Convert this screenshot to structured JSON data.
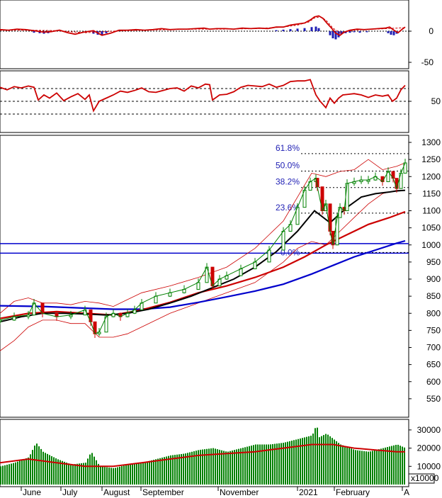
{
  "chart_data": [
    {
      "type": "line",
      "panel": "MACD",
      "y_ticks": [
        "0",
        "-50"
      ],
      "ylim": [
        -60,
        45
      ],
      "series": [
        {
          "role": "macd-line",
          "color": "#cc0000",
          "x": [
            0,
            12,
            24,
            36,
            48,
            62,
            72,
            84,
            96,
            106,
            118,
            132,
            144,
            156,
            168,
            180,
            192,
            204,
            216,
            228,
            240,
            252,
            264,
            276,
            288,
            296,
            306,
            318,
            330,
            342,
            354,
            366,
            378,
            390,
            400,
            410,
            420,
            430,
            438,
            444,
            450,
            456,
            462,
            468,
            474,
            480,
            486,
            494,
            504,
            514,
            524,
            534,
            544,
            550,
            556,
            562,
            568,
            572
          ],
          "values": [
            3,
            2,
            4,
            3,
            1,
            -2,
            -1,
            2,
            -3,
            -6,
            -2,
            1,
            -8,
            -4,
            2,
            2,
            3,
            2,
            3,
            5,
            3,
            4,
            4,
            5,
            6,
            4,
            5,
            5,
            4,
            6,
            5,
            6,
            5,
            8,
            8,
            12,
            14,
            16,
            22,
            28,
            30,
            25,
            15,
            6,
            -4,
            -8,
            -2,
            2,
            4,
            3,
            4,
            5,
            6,
            8,
            2,
            -3,
            4,
            8
          ]
        },
        {
          "role": "signal-line",
          "color": "#cc0000",
          "x": [
            0,
            40,
            80,
            120,
            160,
            200,
            240,
            280,
            320,
            360,
            400,
            420,
            436,
            444,
            452,
            460,
            470,
            480,
            500,
            530,
            560,
            572
          ],
          "values": [
            2,
            2,
            1,
            -3,
            0,
            2,
            3,
            4,
            4,
            5,
            8,
            12,
            18,
            26,
            28,
            22,
            6,
            -3,
            2,
            4,
            6,
            7
          ]
        },
        {
          "role": "histogram",
          "color": "#1f1fb4",
          "x": [
            48,
            56,
            62,
            68,
            72,
            132,
            138,
            144,
            150,
            390,
            400,
            410,
            420,
            430,
            440,
            446,
            450,
            466,
            470,
            474,
            478,
            482,
            488,
            494,
            500,
            508,
            518,
            548,
            552,
            556,
            560
          ],
          "values": [
            -3,
            -4,
            -5,
            -4,
            -2,
            -5,
            -7,
            -8,
            -4,
            2,
            3,
            4,
            5,
            6,
            8,
            9,
            6,
            -8,
            -14,
            -16,
            -12,
            -6,
            -4,
            -3,
            -2,
            -3,
            -2,
            -4,
            -7,
            -8,
            -5
          ]
        }
      ]
    },
    {
      "type": "line",
      "panel": "RSI",
      "y_ticks": [
        "50"
      ],
      "reference_lines": [
        70,
        50,
        30
      ],
      "series": [
        {
          "role": "rsi",
          "color": "#cc0000",
          "x": [
            0,
            10,
            20,
            30,
            40,
            48,
            54,
            62,
            70,
            80,
            90,
            100,
            110,
            120,
            126,
            132,
            140,
            150,
            160,
            170,
            180,
            190,
            200,
            210,
            220,
            230,
            240,
            250,
            260,
            270,
            280,
            290,
            296,
            300,
            310,
            320,
            330,
            340,
            350,
            360,
            370,
            380,
            390,
            400,
            410,
            420,
            430,
            438,
            446,
            452,
            460,
            466,
            472,
            478,
            484,
            492,
            500,
            510,
            520,
            530,
            540,
            548,
            554,
            560,
            566,
            572
          ],
          "values": [
            72,
            68,
            73,
            71,
            74,
            72,
            52,
            60,
            55,
            63,
            51,
            57,
            62,
            53,
            60,
            35,
            50,
            55,
            60,
            66,
            64,
            67,
            71,
            65,
            64,
            67,
            70,
            71,
            66,
            74,
            71,
            77,
            76,
            52,
            60,
            61,
            65,
            72,
            75,
            74,
            73,
            77,
            72,
            75,
            81,
            82,
            82,
            84,
            60,
            50,
            40,
            55,
            47,
            55,
            60,
            61,
            62,
            60,
            56,
            60,
            58,
            60,
            50,
            55,
            68,
            75
          ]
        }
      ]
    },
    {
      "type": "line",
      "panel": "price",
      "ylim": [
        500,
        1300
      ],
      "y_ticks": [
        "1300",
        "1250",
        "1200",
        "1150",
        "1100",
        "1050",
        "1000",
        "950",
        "900",
        "850",
        "800",
        "750",
        "700",
        "650",
        "600",
        "550"
      ],
      "fibonacci": [
        {
          "label": "61.8%",
          "value": 1267
        },
        {
          "label": "50.0%",
          "value": 1216
        },
        {
          "label": "38.2%",
          "value": 1168
        },
        {
          "label": "23.6%",
          "value": 1093
        },
        {
          "label": "0.0%",
          "value": 978
        }
      ],
      "horizontal_lines": [
        1004,
        976
      ],
      "series": [
        {
          "role": "close",
          "color": "#008000",
          "x": [
            0,
            20,
            40,
            48,
            60,
            80,
            100,
            120,
            128,
            134,
            140,
            150,
            160,
            170,
            180,
            190,
            200,
            220,
            240,
            260,
            280,
            292,
            300,
            310,
            320,
            340,
            360,
            380,
            400,
            410,
            420,
            430,
            438,
            446,
            448,
            455,
            460,
            466,
            470,
            476,
            480,
            486,
            490,
            500,
            510,
            520,
            530,
            540,
            548,
            555,
            560,
            566,
            572
          ],
          "values": [
            780,
            790,
            795,
            830,
            800,
            790,
            795,
            810,
            775,
            740,
            745,
            790,
            800,
            790,
            800,
            810,
            830,
            850,
            860,
            870,
            890,
            935,
            880,
            900,
            910,
            930,
            950,
            985,
            1040,
            1060,
            1110,
            1160,
            1185,
            1195,
            1170,
            1100,
            1120,
            1040,
            1000,
            1080,
            1110,
            1100,
            1180,
            1185,
            1190,
            1190,
            1200,
            1185,
            1215,
            1195,
            1165,
            1210,
            1240
          ]
        },
        {
          "role": "ma-fast",
          "color": "#000000",
          "x": [
            0,
            30,
            60,
            90,
            120,
            150,
            180,
            210,
            240,
            270,
            300,
            330,
            360,
            390,
            420,
            444,
            466,
            490,
            510,
            530,
            550,
            560,
            572
          ],
          "values": [
            775,
            790,
            800,
            800,
            798,
            795,
            800,
            812,
            830,
            850,
            875,
            900,
            935,
            980,
            1040,
            1100,
            1065,
            1110,
            1140,
            1150,
            1155,
            1158,
            1160
          ]
        },
        {
          "role": "ma-mid",
          "color": "#cc0000",
          "x": [
            0,
            40,
            80,
            120,
            160,
            200,
            240,
            280,
            320,
            360,
            400,
            430,
            460,
            490,
            520,
            550,
            572
          ],
          "values": [
            785,
            800,
            805,
            800,
            795,
            810,
            832,
            860,
            880,
            905,
            935,
            965,
            1000,
            1030,
            1060,
            1080,
            1097
          ]
        },
        {
          "role": "ma-slow",
          "color": "#0000cc",
          "x": [
            0,
            60,
            120,
            160,
            200,
            240,
            280,
            320,
            360,
            400,
            440,
            470,
            500,
            530,
            560,
            572
          ],
          "values": [
            822,
            820,
            815,
            812,
            812,
            818,
            832,
            848,
            865,
            885,
            915,
            940,
            965,
            985,
            1005,
            1012
          ]
        },
        {
          "role": "bollinger-upper",
          "color": "#cc0000",
          "x": [
            0,
            20,
            40,
            60,
            80,
            100,
            120,
            140,
            160,
            180,
            200,
            240,
            280,
            320,
            360,
            400,
            420,
            440,
            460,
            480,
            500,
            520,
            540,
            560,
            572
          ],
          "values": [
            800,
            835,
            845,
            830,
            830,
            825,
            835,
            830,
            820,
            840,
            860,
            880,
            905,
            935,
            990,
            1070,
            1140,
            1210,
            1200,
            1215,
            1220,
            1250,
            1220,
            1230,
            1240
          ]
        },
        {
          "role": "bollinger-lower",
          "color": "#cc0000",
          "x": [
            0,
            20,
            40,
            60,
            80,
            100,
            120,
            140,
            160,
            180,
            200,
            240,
            280,
            320,
            360,
            400,
            420,
            440,
            460,
            480,
            500,
            520,
            540,
            560,
            572
          ],
          "values": [
            690,
            720,
            760,
            780,
            780,
            770,
            770,
            730,
            730,
            740,
            760,
            800,
            830,
            860,
            890,
            950,
            990,
            1010,
            1000,
            1040,
            1080,
            1120,
            1150,
            1160,
            1160
          ]
        }
      ]
    },
    {
      "type": "bar",
      "panel": "volume",
      "y_ticks": [
        "30000",
        "20000",
        "10000"
      ],
      "unit_label": "x10000",
      "series": [
        {
          "role": "volume",
          "color": "#008000",
          "x": [
            0,
            20,
            40,
            50,
            60,
            80,
            100,
            120,
            128,
            140,
            160,
            180,
            200,
            220,
            240,
            260,
            280,
            300,
            320,
            340,
            360,
            380,
            400,
            420,
            440,
            446,
            450,
            460,
            470,
            480,
            500,
            520,
            540,
            560,
            572
          ],
          "values": [
            10000,
            12000,
            15000,
            23000,
            18000,
            14000,
            11000,
            12000,
            18000,
            10000,
            9000,
            11000,
            12000,
            14000,
            16000,
            17000,
            19000,
            20000,
            18000,
            20000,
            22000,
            22000,
            23000,
            25000,
            27000,
            33000,
            26000,
            28000,
            25000,
            22000,
            19000,
            18000,
            20000,
            22000,
            20000
          ]
        },
        {
          "role": "volume-average",
          "color": "#cc0000",
          "x": [
            0,
            40,
            80,
            120,
            160,
            200,
            240,
            280,
            320,
            360,
            400,
            440,
            470,
            500,
            530,
            560,
            572
          ],
          "values": [
            12000,
            14000,
            12000,
            10000,
            10000,
            12000,
            14000,
            16000,
            17000,
            18000,
            20000,
            22000,
            22000,
            20000,
            19000,
            18000,
            18000
          ]
        }
      ]
    },
    {
      "type": "line",
      "panel": "time-axis",
      "x_tick_labels": [
        "June",
        "July",
        "August",
        "September",
        "November",
        "2021",
        "February",
        "A"
      ]
    }
  ]
}
